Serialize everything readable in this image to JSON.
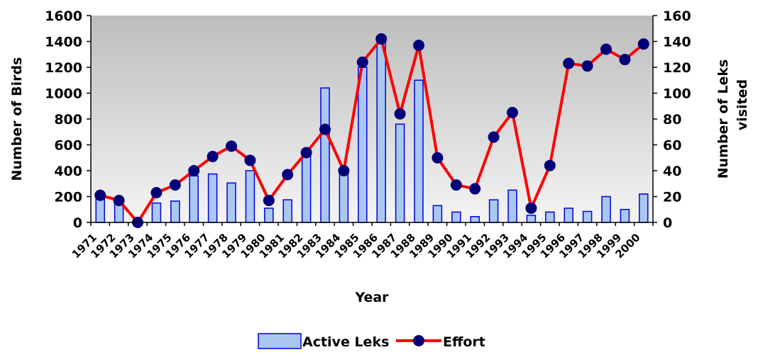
{
  "chart_data": {
    "type": "bar",
    "categories": [
      "1971",
      "1972",
      "1973",
      "1974",
      "1975",
      "1976",
      "1977",
      "1978",
      "1979",
      "1980",
      "1981",
      "1982",
      "1983",
      "1984",
      "1985",
      "1986",
      "1987",
      "1988",
      "1989",
      "1990",
      "1991",
      "1992",
      "1993",
      "1994",
      "1995",
      "1996",
      "1997",
      "1998",
      "1999",
      "2000"
    ],
    "xlabel": "Year",
    "ylabel": "Number of Birds",
    "y2label_line1": "Number of Leks",
    "y2label_line2": "visited",
    "ylim": [
      0,
      1600
    ],
    "y2lim": [
      0,
      160
    ],
    "yticks": [
      "0",
      "200",
      "400",
      "600",
      "800",
      "1000",
      "1200",
      "1400",
      "1600"
    ],
    "y2ticks": [
      "0",
      "20",
      "40",
      "60",
      "80",
      "100",
      "120",
      "140",
      "160"
    ],
    "grid": false,
    "legend_position": "bottom",
    "series": [
      {
        "name": "Active Leks",
        "type": "bar",
        "axis": "left",
        "color": "#a8c8f0",
        "edge_color": "#0000dd",
        "values": [
          230,
          160,
          0,
          150,
          165,
          360,
          375,
          305,
          400,
          110,
          175,
          530,
          1040,
          390,
          1200,
          1420,
          760,
          1100,
          130,
          80,
          45,
          175,
          250,
          55,
          80,
          110,
          85,
          200,
          100,
          220
        ]
      },
      {
        "name": "Effort",
        "type": "line",
        "axis": "right",
        "color": "#ff0000",
        "marker_color": "#00007a",
        "values": [
          21,
          17,
          0,
          23,
          29,
          40,
          51,
          59,
          48,
          17,
          37,
          54,
          72,
          40,
          124,
          142,
          84,
          137,
          50,
          29,
          26,
          66,
          85,
          11,
          44,
          123,
          121,
          134,
          126,
          138
        ]
      }
    ]
  }
}
